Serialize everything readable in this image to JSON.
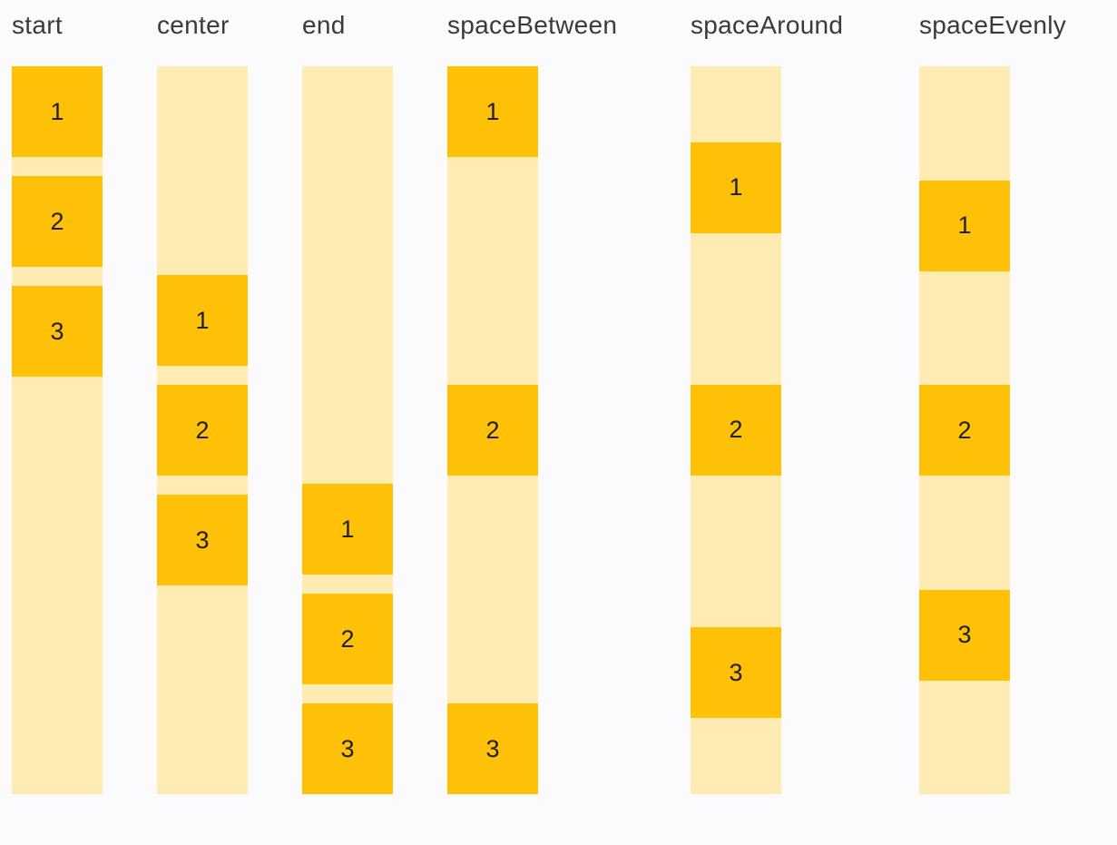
{
  "page": {
    "background": "#FBFBFE",
    "description_labels_visible": [
      "start",
      "center",
      "end",
      "spaceBetween",
      "spaceAround",
      "spaceEvenly"
    ]
  },
  "colors": {
    "box": "#FFC107",
    "track": "#FFECB3",
    "label_text": "#3A3A3A",
    "number_text": "#212121"
  },
  "columns": [
    {
      "label": "start",
      "justify": "flex-start",
      "gapped": true,
      "items": [
        "1",
        "2",
        "3"
      ]
    },
    {
      "label": "center",
      "justify": "center",
      "gapped": true,
      "items": [
        "1",
        "2",
        "3"
      ]
    },
    {
      "label": "end",
      "justify": "flex-end",
      "gapped": true,
      "items": [
        "1",
        "2",
        "3"
      ]
    },
    {
      "label": "spaceBetween",
      "justify": "space-between",
      "gapped": false,
      "items": [
        "1",
        "2",
        "3"
      ]
    },
    {
      "label": "spaceAround",
      "justify": "space-around",
      "gapped": false,
      "items": [
        "1",
        "2",
        "3"
      ]
    },
    {
      "label": "spaceEvenly",
      "justify": "space-evenly",
      "gapped": false,
      "items": [
        "1",
        "2",
        "3"
      ]
    }
  ]
}
